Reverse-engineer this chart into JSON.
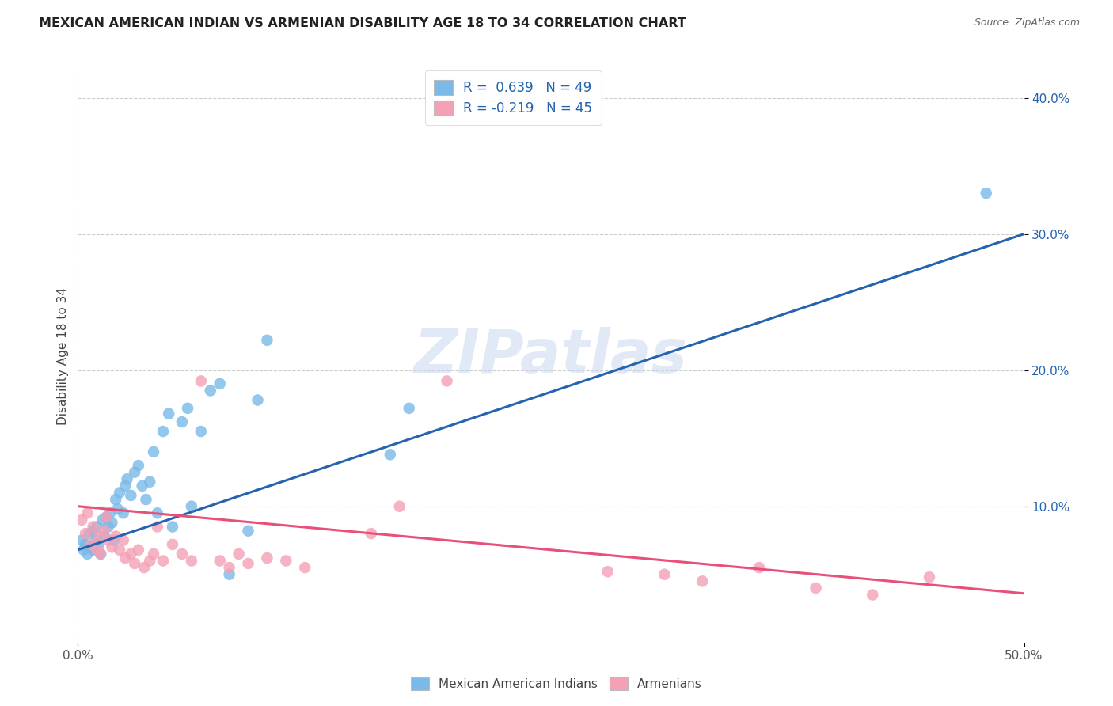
{
  "title": "MEXICAN AMERICAN INDIAN VS ARMENIAN DISABILITY AGE 18 TO 34 CORRELATION CHART",
  "source": "Source: ZipAtlas.com",
  "ylabel": "Disability Age 18 to 34",
  "xlim": [
    0.0,
    0.5
  ],
  "ylim": [
    0.0,
    0.42
  ],
  "xticks": [
    0.0,
    0.5
  ],
  "yticks": [
    0.1,
    0.2,
    0.3,
    0.4
  ],
  "blue_R": 0.639,
  "blue_N": 49,
  "pink_R": -0.219,
  "pink_N": 45,
  "blue_line_x": [
    0.0,
    0.5
  ],
  "blue_line_y": [
    0.068,
    0.3
  ],
  "pink_line_x": [
    0.0,
    0.5
  ],
  "pink_line_y": [
    0.1,
    0.036
  ],
  "blue_color": "#7ab9e8",
  "pink_color": "#f4a0b5",
  "blue_line_color": "#2563ae",
  "pink_line_color": "#e8507a",
  "background_color": "#ffffff",
  "grid_color": "#cccccc",
  "watermark_text": "ZIPatlas",
  "blue_scatter_x": [
    0.002,
    0.003,
    0.004,
    0.005,
    0.006,
    0.007,
    0.008,
    0.008,
    0.01,
    0.01,
    0.011,
    0.012,
    0.013,
    0.014,
    0.015,
    0.016,
    0.017,
    0.018,
    0.019,
    0.02,
    0.021,
    0.022,
    0.024,
    0.025,
    0.026,
    0.028,
    0.03,
    0.032,
    0.034,
    0.036,
    0.038,
    0.04,
    0.042,
    0.045,
    0.048,
    0.05,
    0.055,
    0.058,
    0.06,
    0.065,
    0.07,
    0.075,
    0.08,
    0.09,
    0.095,
    0.1,
    0.165,
    0.175,
    0.48
  ],
  "blue_scatter_y": [
    0.075,
    0.068,
    0.072,
    0.065,
    0.08,
    0.07,
    0.068,
    0.082,
    0.075,
    0.085,
    0.072,
    0.065,
    0.09,
    0.078,
    0.092,
    0.085,
    0.095,
    0.088,
    0.075,
    0.105,
    0.098,
    0.11,
    0.095,
    0.115,
    0.12,
    0.108,
    0.125,
    0.13,
    0.115,
    0.105,
    0.118,
    0.14,
    0.095,
    0.155,
    0.168,
    0.085,
    0.162,
    0.172,
    0.1,
    0.155,
    0.185,
    0.19,
    0.05,
    0.082,
    0.178,
    0.222,
    0.138,
    0.172,
    0.33
  ],
  "pink_scatter_x": [
    0.002,
    0.004,
    0.005,
    0.007,
    0.008,
    0.01,
    0.011,
    0.012,
    0.014,
    0.015,
    0.016,
    0.018,
    0.02,
    0.022,
    0.024,
    0.025,
    0.028,
    0.03,
    0.032,
    0.035,
    0.038,
    0.04,
    0.042,
    0.045,
    0.05,
    0.055,
    0.06,
    0.065,
    0.075,
    0.08,
    0.085,
    0.09,
    0.1,
    0.11,
    0.12,
    0.155,
    0.17,
    0.195,
    0.28,
    0.31,
    0.33,
    0.36,
    0.39,
    0.42,
    0.45
  ],
  "pink_scatter_y": [
    0.09,
    0.08,
    0.095,
    0.072,
    0.085,
    0.068,
    0.078,
    0.065,
    0.082,
    0.092,
    0.075,
    0.07,
    0.078,
    0.068,
    0.075,
    0.062,
    0.065,
    0.058,
    0.068,
    0.055,
    0.06,
    0.065,
    0.085,
    0.06,
    0.072,
    0.065,
    0.06,
    0.192,
    0.06,
    0.055,
    0.065,
    0.058,
    0.062,
    0.06,
    0.055,
    0.08,
    0.1,
    0.192,
    0.052,
    0.05,
    0.045,
    0.055,
    0.04,
    0.035,
    0.048
  ]
}
